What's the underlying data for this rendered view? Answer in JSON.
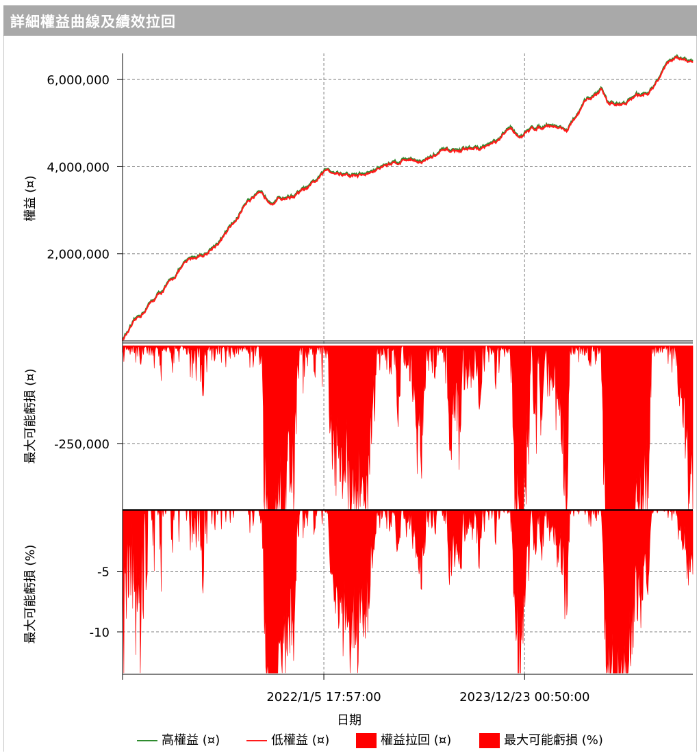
{
  "window": {
    "title": "詳細權益曲線及績效拉回"
  },
  "colors": {
    "high_equity": "#2e8b2e",
    "low_equity": "#ff1a1a",
    "fill": "#ff0000",
    "grid": "#808080"
  },
  "chart_data": [
    {
      "type": "line",
      "ylabel": "權益 (¤)",
      "ylim": [
        0,
        6600000
      ],
      "yticks": [
        {
          "value": 2000000,
          "label": "2,000,000"
        },
        {
          "value": 4000000,
          "label": "4,000,000"
        },
        {
          "value": 6000000,
          "label": "6,000,000"
        }
      ],
      "x": [
        0,
        0.02,
        0.05,
        0.08,
        0.1,
        0.12,
        0.15,
        0.18,
        0.2,
        0.22,
        0.24,
        0.26,
        0.3,
        0.33,
        0.36,
        0.4,
        0.43,
        0.46,
        0.5,
        0.53,
        0.56,
        0.6,
        0.63,
        0.66,
        0.68,
        0.7,
        0.72,
        0.75,
        0.78,
        0.81,
        0.84,
        0.85,
        0.87,
        0.9,
        0.93,
        0.95,
        0.97,
        1.0
      ],
      "series": [
        {
          "name": "高權益 (¤)",
          "values": [
            50000,
            400000,
            900000,
            1300000,
            1650000,
            1900000,
            2050000,
            2450000,
            2800000,
            3300000,
            3350000,
            3250000,
            3350000,
            3550000,
            3950000,
            3800000,
            3850000,
            4050000,
            4200000,
            4150000,
            4350000,
            4400000,
            4450000,
            4600000,
            4900000,
            4700000,
            4900000,
            5000000,
            4850000,
            5450000,
            5800000,
            5500000,
            5450000,
            5600000,
            5800000,
            6300000,
            6500000,
            6400000
          ]
        },
        {
          "name": "低權益 (¤)",
          "values": [
            30000,
            380000,
            880000,
            1280000,
            1630000,
            1880000,
            2030000,
            2430000,
            2780000,
            3280000,
            3330000,
            3230000,
            3330000,
            3530000,
            3930000,
            3780000,
            3830000,
            4030000,
            4180000,
            4130000,
            4330000,
            4380000,
            4430000,
            4580000,
            4880000,
            4680000,
            4880000,
            4980000,
            4830000,
            5430000,
            5780000,
            5480000,
            5430000,
            5580000,
            5780000,
            6280000,
            6480000,
            6380000
          ]
        }
      ]
    },
    {
      "type": "area",
      "ylabel": "最大可能虧損 (¤)",
      "ylim": [
        -420000,
        0
      ],
      "yticks": [
        {
          "value": -250000,
          "label": "-250,000"
        }
      ],
      "series": [
        {
          "name": "權益拉回 (¤)",
          "values": []
        }
      ]
    },
    {
      "type": "area",
      "ylabel": "最大可能虧損 (%)",
      "ylim": [
        -13.5,
        0
      ],
      "yticks": [
        {
          "value": -5,
          "label": "-5"
        },
        {
          "value": -10,
          "label": "-10"
        }
      ],
      "series": [
        {
          "name": "最大可能虧損 (%)",
          "values": []
        }
      ]
    }
  ],
  "x_axis": {
    "label": "日期",
    "ticks": [
      {
        "pos": 0.353,
        "label": "2022/1/5 17:57:00"
      },
      {
        "pos": 0.705,
        "label": "2023/12/23 00:50:00"
      }
    ]
  },
  "legend": [
    {
      "label": "高權益 (¤)",
      "kind": "line",
      "color": "#2e8b2e"
    },
    {
      "label": "低權益 (¤)",
      "kind": "line",
      "color": "#ff1a1a"
    },
    {
      "label": "權益拉回 (¤)",
      "kind": "box",
      "color": "#ff0000"
    },
    {
      "label": "最大可能虧損 (%)",
      "kind": "box",
      "color": "#ff0000"
    }
  ]
}
